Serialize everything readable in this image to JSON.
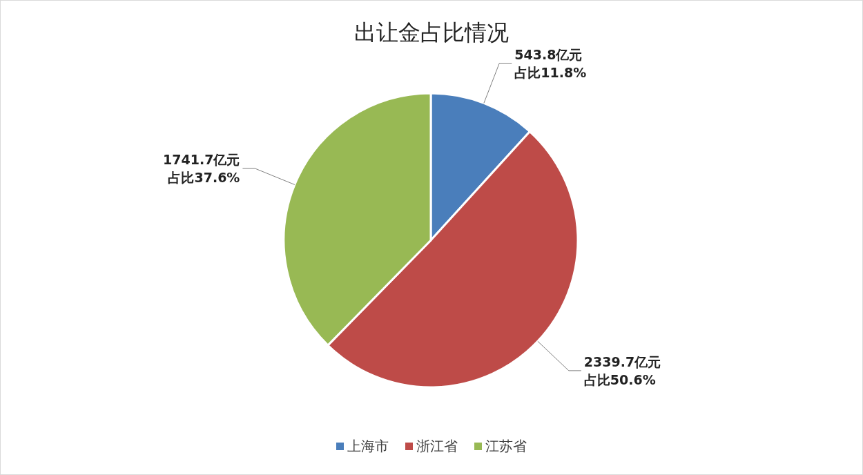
{
  "chart_data": {
    "type": "pie",
    "title": "出让金占比情况",
    "categories": [
      "上海市",
      "浙江省",
      "江苏省"
    ],
    "values": [
      543.8,
      2339.7,
      1741.7
    ],
    "colors": [
      "#4a7ebb",
      "#be4b48",
      "#98b954"
    ],
    "value_labels": [
      "543.8亿元占比11.8%",
      "2339.7亿元占比50.6%",
      "1741.7亿元占比37.6%"
    ],
    "legend": "bottom"
  }
}
